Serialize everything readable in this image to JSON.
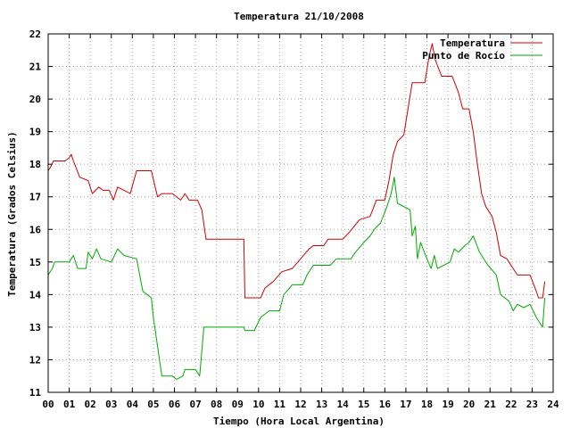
{
  "chart_data": {
    "type": "line",
    "title": "Temperatura 21/10/2008",
    "xlabel": "Tiempo (Hora Local Argentina)",
    "ylabel": "Temperatura (Grados Celsius)",
    "xlim": [
      0,
      24
    ],
    "ylim": [
      11,
      22
    ],
    "x_ticks": [
      "00",
      "01",
      "02",
      "03",
      "04",
      "05",
      "06",
      "07",
      "08",
      "09",
      "10",
      "11",
      "12",
      "13",
      "14",
      "15",
      "16",
      "17",
      "18",
      "19",
      "20",
      "21",
      "22",
      "23",
      "24"
    ],
    "y_ticks": [
      "11",
      "12",
      "13",
      "14",
      "15",
      "16",
      "17",
      "18",
      "19",
      "20",
      "21",
      "22"
    ],
    "grid": true,
    "legend_position": "top-right",
    "series": [
      {
        "name": "Temperatura",
        "color": "#cc0000",
        "points": [
          [
            0.0,
            17.8
          ],
          [
            0.1,
            17.9
          ],
          [
            0.25,
            18.1
          ],
          [
            0.5,
            18.1
          ],
          [
            0.8,
            18.1
          ],
          [
            1.0,
            18.2
          ],
          [
            1.1,
            18.3
          ],
          [
            1.2,
            18.1
          ],
          [
            1.5,
            17.6
          ],
          [
            1.9,
            17.5
          ],
          [
            2.1,
            17.1
          ],
          [
            2.4,
            17.3
          ],
          [
            2.6,
            17.2
          ],
          [
            2.9,
            17.2
          ],
          [
            3.1,
            16.9
          ],
          [
            3.3,
            17.3
          ],
          [
            3.6,
            17.2
          ],
          [
            3.9,
            17.1
          ],
          [
            4.2,
            17.8
          ],
          [
            4.9,
            17.8
          ],
          [
            5.2,
            17.0
          ],
          [
            5.4,
            17.1
          ],
          [
            5.9,
            17.1
          ],
          [
            6.3,
            16.9
          ],
          [
            6.5,
            17.1
          ],
          [
            6.7,
            16.9
          ],
          [
            7.1,
            16.9
          ],
          [
            7.3,
            16.6
          ],
          [
            7.5,
            15.7
          ],
          [
            9.3,
            15.7
          ],
          [
            9.35,
            13.9
          ],
          [
            10.1,
            13.9
          ],
          [
            10.3,
            14.2
          ],
          [
            10.7,
            14.4
          ],
          [
            11.1,
            14.7
          ],
          [
            11.6,
            14.8
          ],
          [
            12.0,
            15.1
          ],
          [
            12.4,
            15.4
          ],
          [
            12.6,
            15.5
          ],
          [
            13.1,
            15.5
          ],
          [
            13.3,
            15.7
          ],
          [
            14.0,
            15.7
          ],
          [
            14.3,
            15.9
          ],
          [
            14.8,
            16.3
          ],
          [
            15.3,
            16.4
          ],
          [
            15.6,
            16.9
          ],
          [
            16.0,
            16.9
          ],
          [
            16.2,
            17.5
          ],
          [
            16.4,
            18.3
          ],
          [
            16.6,
            18.7
          ],
          [
            16.9,
            18.9
          ],
          [
            17.1,
            19.7
          ],
          [
            17.3,
            20.5
          ],
          [
            17.5,
            20.5
          ],
          [
            17.9,
            20.5
          ],
          [
            18.1,
            21.3
          ],
          [
            18.25,
            21.7
          ],
          [
            18.4,
            21.2
          ],
          [
            18.7,
            20.7
          ],
          [
            19.2,
            20.7
          ],
          [
            19.5,
            20.2
          ],
          [
            19.7,
            19.7
          ],
          [
            20.0,
            19.7
          ],
          [
            20.2,
            19.0
          ],
          [
            20.4,
            18.0
          ],
          [
            20.6,
            17.1
          ],
          [
            20.8,
            16.7
          ],
          [
            21.1,
            16.4
          ],
          [
            21.3,
            15.9
          ],
          [
            21.5,
            15.2
          ],
          [
            21.8,
            15.1
          ],
          [
            22.0,
            14.9
          ],
          [
            22.3,
            14.6
          ],
          [
            22.9,
            14.6
          ],
          [
            23.2,
            14.1
          ],
          [
            23.3,
            13.9
          ],
          [
            23.5,
            13.9
          ],
          [
            23.6,
            14.4
          ]
        ]
      },
      {
        "name": "Punto de Rocío",
        "color": "#00aa00",
        "points": [
          [
            0.0,
            14.6
          ],
          [
            0.2,
            14.8
          ],
          [
            0.3,
            15.0
          ],
          [
            0.7,
            15.0
          ],
          [
            1.0,
            15.0
          ],
          [
            1.2,
            15.2
          ],
          [
            1.4,
            14.8
          ],
          [
            1.8,
            14.8
          ],
          [
            1.9,
            15.3
          ],
          [
            2.1,
            15.1
          ],
          [
            2.3,
            15.4
          ],
          [
            2.5,
            15.1
          ],
          [
            3.0,
            15.0
          ],
          [
            3.3,
            15.4
          ],
          [
            3.6,
            15.2
          ],
          [
            4.2,
            15.1
          ],
          [
            4.5,
            14.1
          ],
          [
            4.9,
            13.9
          ],
          [
            5.0,
            13.3
          ],
          [
            5.4,
            11.5
          ],
          [
            5.9,
            11.5
          ],
          [
            6.1,
            11.4
          ],
          [
            6.4,
            11.5
          ],
          [
            6.5,
            11.7
          ],
          [
            7.0,
            11.7
          ],
          [
            7.2,
            11.5
          ],
          [
            7.4,
            13.0
          ],
          [
            8.0,
            13.0
          ],
          [
            9.0,
            13.0
          ],
          [
            9.3,
            13.0
          ],
          [
            9.35,
            12.9
          ],
          [
            9.8,
            12.9
          ],
          [
            10.1,
            13.3
          ],
          [
            10.5,
            13.5
          ],
          [
            11.0,
            13.5
          ],
          [
            11.2,
            14.0
          ],
          [
            11.6,
            14.3
          ],
          [
            12.1,
            14.3
          ],
          [
            12.3,
            14.6
          ],
          [
            12.6,
            14.9
          ],
          [
            13.4,
            14.9
          ],
          [
            13.7,
            15.1
          ],
          [
            14.4,
            15.1
          ],
          [
            14.6,
            15.3
          ],
          [
            15.0,
            15.6
          ],
          [
            15.3,
            15.8
          ],
          [
            15.5,
            16.0
          ],
          [
            15.8,
            16.2
          ],
          [
            16.1,
            16.7
          ],
          [
            16.3,
            17.1
          ],
          [
            16.45,
            17.6
          ],
          [
            16.6,
            16.8
          ],
          [
            17.2,
            16.6
          ],
          [
            17.3,
            15.8
          ],
          [
            17.45,
            16.1
          ],
          [
            17.55,
            15.1
          ],
          [
            17.7,
            15.6
          ],
          [
            18.0,
            15.1
          ],
          [
            18.2,
            14.8
          ],
          [
            18.35,
            15.2
          ],
          [
            18.5,
            14.8
          ],
          [
            18.8,
            14.9
          ],
          [
            19.1,
            15.0
          ],
          [
            19.3,
            15.4
          ],
          [
            19.5,
            15.3
          ],
          [
            19.8,
            15.5
          ],
          [
            20.0,
            15.6
          ],
          [
            20.2,
            15.8
          ],
          [
            20.5,
            15.3
          ],
          [
            20.9,
            14.9
          ],
          [
            21.3,
            14.6
          ],
          [
            21.5,
            14.0
          ],
          [
            21.9,
            13.8
          ],
          [
            22.1,
            13.5
          ],
          [
            22.3,
            13.7
          ],
          [
            22.6,
            13.6
          ],
          [
            22.9,
            13.7
          ],
          [
            23.2,
            13.3
          ],
          [
            23.5,
            13.0
          ],
          [
            23.6,
            13.9
          ]
        ]
      }
    ]
  }
}
